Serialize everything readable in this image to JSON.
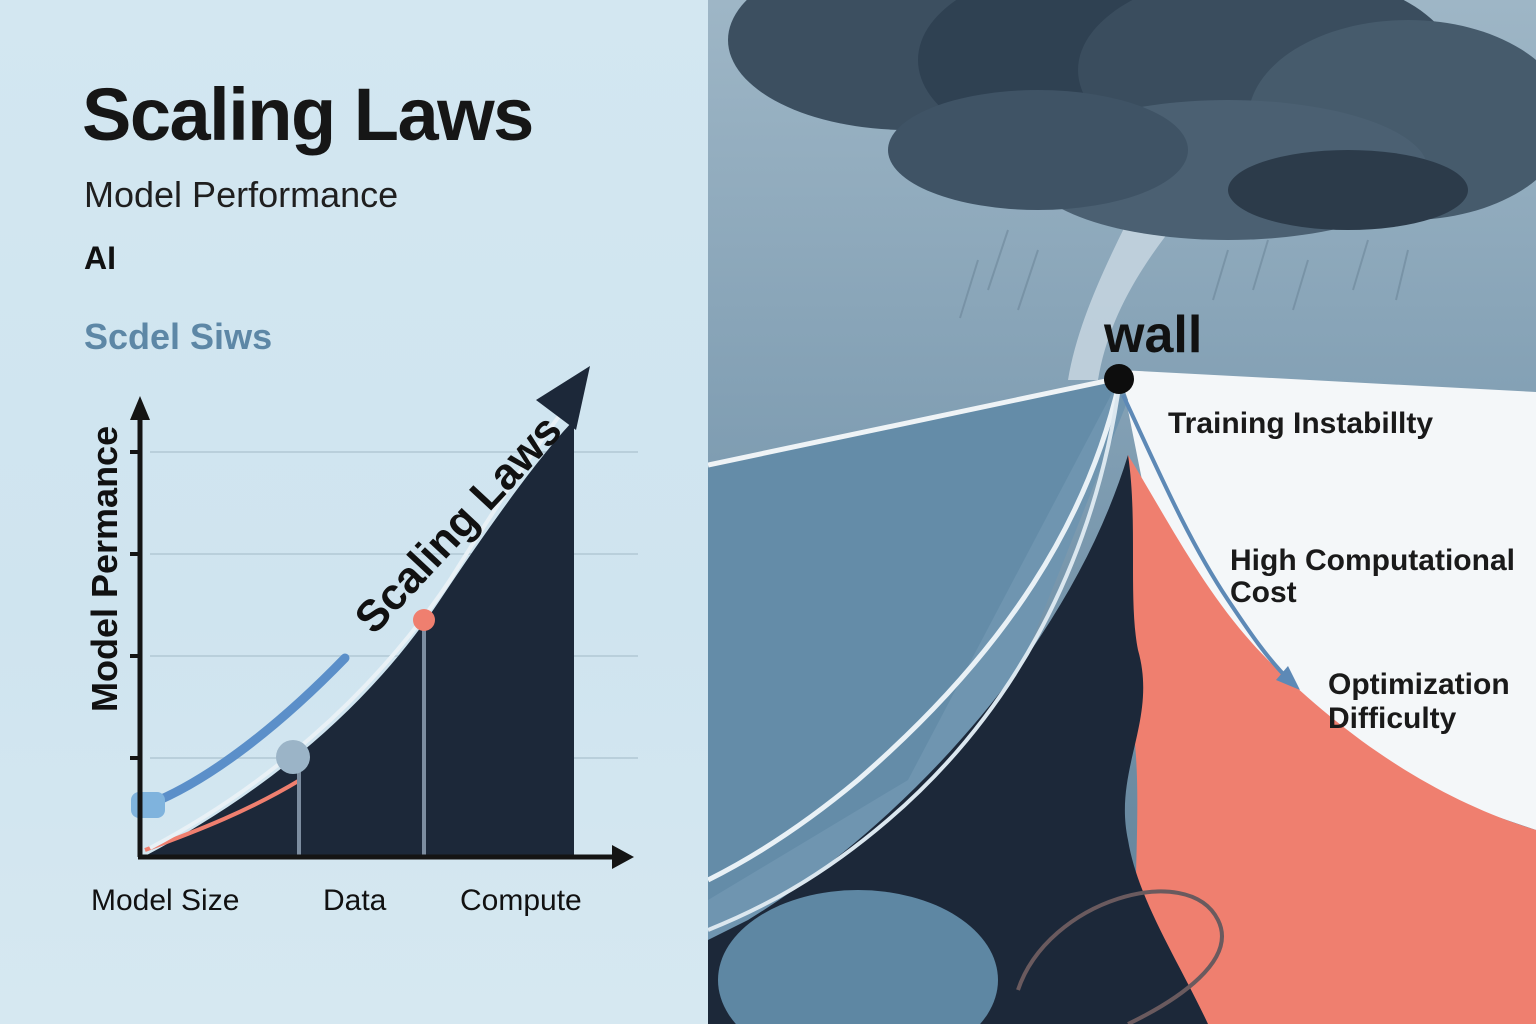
{
  "left": {
    "title": "Scaling Laws",
    "subtitle": "Model Performance",
    "tag": "AI",
    "section_label": "Scdel Siws",
    "y_axis_label": "Model Permance",
    "curve_label": "Scaling Laws",
    "x_categories": [
      "Model Size",
      "Data",
      "Compute"
    ]
  },
  "right": {
    "wall_label": "wall",
    "issues": [
      {
        "lines": [
          "Training Instabillty"
        ]
      },
      {
        "lines": [
          "High Computational",
          "Cost"
        ]
      },
      {
        "lines": [
          "Optimization",
          "Difficulty"
        ]
      }
    ]
  },
  "colors": {
    "navy": "#1c2839",
    "accent_blue": "#5b8fc9",
    "coral": "#ef7f6f",
    "slate": "#5b7f98",
    "storm": "#3c4f60"
  }
}
